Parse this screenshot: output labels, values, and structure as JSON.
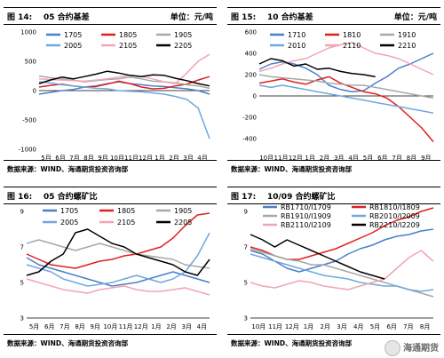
{
  "charts": [
    {
      "fig": "图 14:",
      "title": "05 合约基差",
      "unit": "单位：元/吨",
      "source": "数据来源：WIND、海通期货投资咨询部",
      "chart_data": {
        "type": "line",
        "ylim": [
          -1000,
          1000
        ],
        "yticks": [
          1000,
          500,
          0,
          -500,
          -1000
        ],
        "xticks": [
          "5月",
          "6月",
          "7月",
          "8月",
          "9月",
          "10月",
          "11月",
          "12月",
          "1月",
          "2月",
          "3月",
          "4月"
        ],
        "legend_columns": 3,
        "series": [
          {
            "name": "1705",
            "color": "#4a7fc9",
            "values": [
              -60,
              -30,
              0,
              20,
              60,
              80,
              120,
              150,
              120,
              100,
              80,
              70,
              50,
              30,
              0,
              -60
            ]
          },
          {
            "name": "1805",
            "color": "#e02020",
            "values": [
              60,
              90,
              110,
              80,
              60,
              70,
              110,
              160,
              120,
              60,
              30,
              40,
              80,
              110,
              180,
              240
            ]
          },
          {
            "name": "1905",
            "color": "#a8a8a8",
            "values": [
              250,
              220,
              200,
              180,
              150,
              170,
              190,
              200,
              230,
              200,
              160,
              150,
              130,
              100,
              80,
              40
            ]
          },
          {
            "name": "2005",
            "color": "#6fa8dc",
            "values": [
              150,
              130,
              100,
              80,
              60,
              40,
              30,
              0,
              -10,
              -20,
              -40,
              -60,
              -100,
              -150,
              -300,
              -820
            ]
          },
          {
            "name": "2105",
            "color": "#f2a5b0",
            "values": [
              200,
              190,
              180,
              170,
              160,
              180,
              200,
              230,
              260,
              240,
              200,
              150,
              120,
              300,
              500,
              620
            ]
          },
          {
            "name": "2205",
            "color": "#000000",
            "values": [
              120,
              180,
              230,
              200,
              240,
              280,
              330,
              300,
              260,
              240,
              270,
              260,
              210,
              170,
              120,
              80
            ]
          }
        ]
      }
    },
    {
      "fig": "图 15:",
      "title": "10 合约基差",
      "unit": "单位：元/吨",
      "source": "数据来源：WIND、海通期货投资咨询部",
      "chart_data": {
        "type": "line",
        "ylim": [
          -500,
          600
        ],
        "yticks": [
          600,
          400,
          200,
          0,
          -200,
          -400
        ],
        "xticks": [
          "10月",
          "11月",
          "12月",
          "1月",
          "2月",
          "3月",
          "4月",
          "5月",
          "6月",
          "7月",
          "8月",
          "9月"
        ],
        "legend_columns": 3,
        "series": [
          {
            "name": "1710",
            "color": "#4a7fc9",
            "values": [
              250,
              300,
              320,
              300,
              260,
              200,
              100,
              60,
              40,
              50,
              120,
              180,
              260,
              300,
              350,
              400
            ]
          },
          {
            "name": "1810",
            "color": "#e02020",
            "values": [
              120,
              140,
              160,
              130,
              110,
              150,
              180,
              120,
              80,
              40,
              20,
              -20,
              -100,
              -200,
              -300,
              -430
            ]
          },
          {
            "name": "1910",
            "color": "#a8a8a8",
            "values": [
              200,
              180,
              170,
              160,
              150,
              140,
              120,
              110,
              100,
              100,
              80,
              60,
              40,
              20,
              0,
              -20
            ]
          },
          {
            "name": "2010",
            "color": "#6fa8dc",
            "values": [
              100,
              80,
              100,
              80,
              60,
              40,
              20,
              0,
              -20,
              -40,
              -60,
              -80,
              -100,
              -120,
              -140,
              -160
            ]
          },
          {
            "name": "2110",
            "color": "#f2a5b0",
            "values": [
              230,
              260,
              300,
              330,
              350,
              400,
              450,
              480,
              500,
              450,
              400,
              380,
              350,
              300,
              250,
              200
            ]
          },
          {
            "name": "2210",
            "color": "#000000",
            "values": [
              300,
              350,
              330,
              280,
              300,
              250,
              260,
              230,
              210,
              200,
              180,
              null,
              null,
              null,
              null,
              null
            ]
          }
        ]
      }
    },
    {
      "fig": "图 16:",
      "title": "05 合约螺矿比",
      "unit": "",
      "source": "数据来源：WIND、海通期货投资咨询部",
      "chart_data": {
        "type": "line",
        "ylim": [
          3,
          9
        ],
        "yticks": [
          9,
          7,
          5,
          3
        ],
        "xticks": [
          "5月",
          "6月",
          "7月",
          "8月",
          "9月",
          "10月",
          "11月",
          "12月",
          "1月",
          "2月",
          "3月",
          "4月"
        ],
        "legend_columns": 3,
        "series": [
          {
            "name": "1705",
            "color": "#4a7fc9",
            "values": [
              6.4,
              6.0,
              5.8,
              5.6,
              5.4,
              5.2,
              5.0,
              4.8,
              4.9,
              5.0,
              5.2,
              5.4,
              5.6,
              5.4,
              5.2,
              5.0
            ]
          },
          {
            "name": "1805",
            "color": "#e02020",
            "values": [
              6.6,
              6.3,
              6.0,
              5.9,
              5.8,
              6.0,
              6.2,
              6.3,
              6.5,
              6.6,
              6.8,
              7.0,
              7.5,
              8.2,
              8.8,
              8.9
            ]
          },
          {
            "name": "1905",
            "color": "#a8a8a8",
            "values": [
              7.2,
              7.4,
              7.2,
              7.0,
              6.8,
              7.0,
              7.2,
              7.0,
              6.8,
              6.6,
              6.5,
              6.4,
              6.3,
              6.0,
              5.9,
              5.8
            ]
          },
          {
            "name": "2005",
            "color": "#6fa8dc",
            "values": [
              6.0,
              5.8,
              5.6,
              5.2,
              5.0,
              4.8,
              4.9,
              5.0,
              5.2,
              5.4,
              5.2,
              5.0,
              5.2,
              5.6,
              6.5,
              7.8
            ]
          },
          {
            "name": "2105",
            "color": "#f2a5b0",
            "values": [
              5.2,
              5.0,
              4.8,
              4.6,
              4.5,
              4.4,
              4.6,
              4.7,
              4.8,
              4.6,
              4.5,
              4.5,
              4.6,
              4.7,
              4.5,
              4.3
            ]
          },
          {
            "name": "2205",
            "color": "#000000",
            "values": [
              5.4,
              5.6,
              6.2,
              6.6,
              7.8,
              8.0,
              7.6,
              7.2,
              7.0,
              6.6,
              6.4,
              6.2,
              6.0,
              5.6,
              5.4,
              6.3
            ]
          }
        ]
      }
    },
    {
      "fig": "图 17:",
      "title": "10/09 合约螺矿比",
      "unit": "",
      "source": "数据来源：WIND、海通期货投资咨询部",
      "chart_data": {
        "type": "line",
        "ylim": [
          3,
          9
        ],
        "yticks": [
          9,
          7,
          5,
          3
        ],
        "xticks": [
          "10月",
          "11月",
          "12月",
          "1月",
          "2月",
          "3月",
          "4月",
          "5月",
          "6月",
          "7月",
          "8月"
        ],
        "legend_columns": 2,
        "series": [
          {
            "name": "RB1710/I1709",
            "color": "#4a7fc9",
            "values": [
              6.8,
              6.6,
              6.2,
              5.8,
              5.6,
              5.8,
              6.0,
              6.2,
              6.6,
              6.9,
              7.1,
              7.4,
              7.6,
              7.7,
              7.9,
              8.0
            ]
          },
          {
            "name": "RB1810/I1809",
            "color": "#e02020",
            "values": [
              7.0,
              6.8,
              6.5,
              6.3,
              6.3,
              6.5,
              6.7,
              6.9,
              7.2,
              7.5,
              7.8,
              8.2,
              8.5,
              8.7,
              9.0,
              9.2
            ]
          },
          {
            "name": "RB1910/I1909",
            "color": "#a8a8a8",
            "values": [
              6.9,
              6.7,
              6.5,
              6.3,
              6.2,
              6.0,
              6.0,
              5.8,
              5.6,
              5.4,
              5.2,
              5.0,
              4.8,
              4.6,
              4.4,
              4.2
            ]
          },
          {
            "name": "RB2010/I2009",
            "color": "#6fa8dc",
            "values": [
              6.6,
              6.4,
              6.2,
              6.0,
              5.8,
              5.6,
              5.4,
              5.3,
              5.2,
              5.0,
              4.9,
              4.8,
              4.8,
              4.6,
              4.5,
              4.6
            ]
          },
          {
            "name": "RB2110/I2109",
            "color": "#f2a5b0",
            "values": [
              5.0,
              4.8,
              4.7,
              4.9,
              5.1,
              5.0,
              4.8,
              4.7,
              4.6,
              4.8,
              5.0,
              5.2,
              5.8,
              6.4,
              6.8,
              6.2
            ]
          },
          {
            "name": "RB2210/I2209",
            "color": "#000000",
            "values": [
              7.7,
              7.4,
              7.0,
              7.4,
              7.1,
              6.8,
              6.5,
              6.2,
              5.9,
              5.6,
              5.4,
              5.2,
              null,
              null,
              null,
              null
            ]
          }
        ]
      }
    }
  ],
  "watermark": "海通期货"
}
